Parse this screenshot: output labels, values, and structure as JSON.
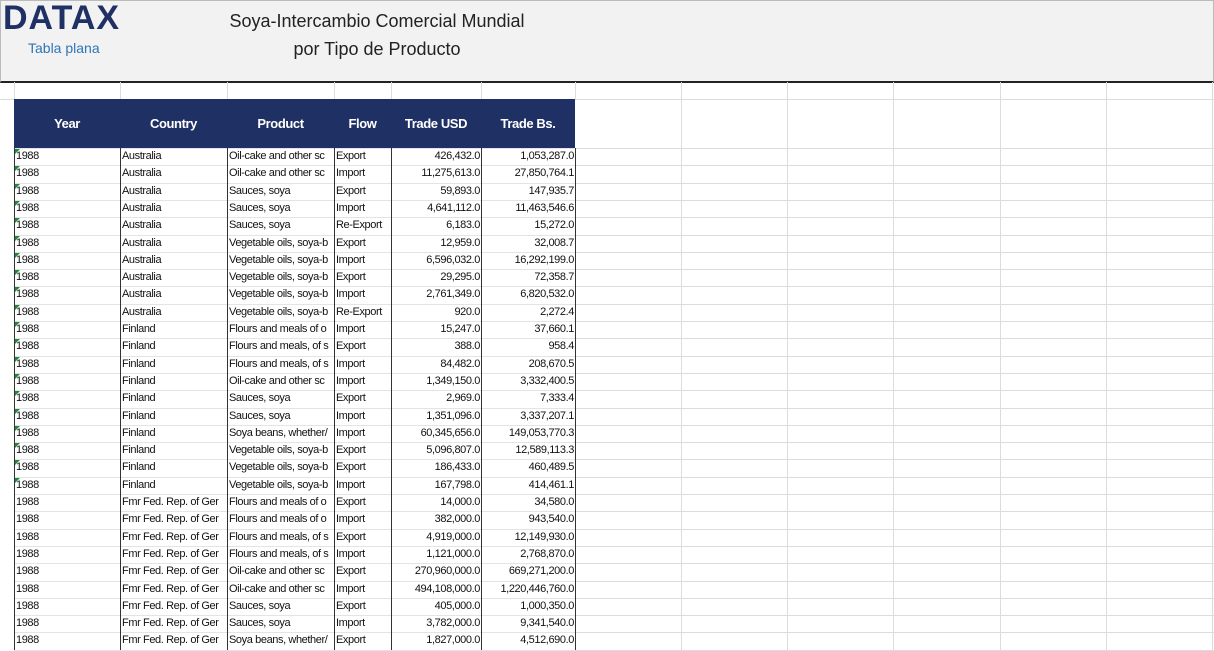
{
  "header": {
    "logo": "DATAX",
    "logo_subtitle": "Tabla plana",
    "title_lines": [
      "Soya-Intercambio Comercial Mundial",
      "por Tipo de Producto"
    ]
  },
  "table": {
    "columns": [
      "Year",
      "Country",
      "Product",
      "Flow",
      "Trade USD",
      "Trade Bs."
    ],
    "rows": [
      [
        "1988",
        "Australia",
        "Oil-cake and other sc",
        "Export",
        "426,432.0",
        "1,053,287.0"
      ],
      [
        "1988",
        "Australia",
        "Oil-cake and other sc",
        "Import",
        "11,275,613.0",
        "27,850,764.1"
      ],
      [
        "1988",
        "Australia",
        "Sauces, soya",
        "Export",
        "59,893.0",
        "147,935.7"
      ],
      [
        "1988",
        "Australia",
        "Sauces, soya",
        "Import",
        "4,641,112.0",
        "11,463,546.6"
      ],
      [
        "1988",
        "Australia",
        "Sauces, soya",
        "Re-Export",
        "6,183.0",
        "15,272.0"
      ],
      [
        "1988",
        "Australia",
        "Vegetable oils, soya-b",
        "Export",
        "12,959.0",
        "32,008.7"
      ],
      [
        "1988",
        "Australia",
        "Vegetable oils, soya-b",
        "Import",
        "6,596,032.0",
        "16,292,199.0"
      ],
      [
        "1988",
        "Australia",
        "Vegetable oils, soya-b",
        "Export",
        "29,295.0",
        "72,358.7"
      ],
      [
        "1988",
        "Australia",
        "Vegetable oils, soya-b",
        "Import",
        "2,761,349.0",
        "6,820,532.0"
      ],
      [
        "1988",
        "Australia",
        "Vegetable oils, soya-b",
        "Re-Export",
        "920.0",
        "2,272.4"
      ],
      [
        "1988",
        "Finland",
        "Flours and meals of o",
        "Import",
        "15,247.0",
        "37,660.1"
      ],
      [
        "1988",
        "Finland",
        "Flours and meals, of s",
        "Export",
        "388.0",
        "958.4"
      ],
      [
        "1988",
        "Finland",
        "Flours and meals, of s",
        "Import",
        "84,482.0",
        "208,670.5"
      ],
      [
        "1988",
        "Finland",
        "Oil-cake and other sc",
        "Import",
        "1,349,150.0",
        "3,332,400.5"
      ],
      [
        "1988",
        "Finland",
        "Sauces, soya",
        "Export",
        "2,969.0",
        "7,333.4"
      ],
      [
        "1988",
        "Finland",
        "Sauces, soya",
        "Import",
        "1,351,096.0",
        "3,337,207.1"
      ],
      [
        "1988",
        "Finland",
        "Soya beans, whether/",
        "Import",
        "60,345,656.0",
        "149,053,770.3"
      ],
      [
        "1988",
        "Finland",
        "Vegetable oils, soya-b",
        "Export",
        "5,096,807.0",
        "12,589,113.3"
      ],
      [
        "1988",
        "Finland",
        "Vegetable oils, soya-b",
        "Export",
        "186,433.0",
        "460,489.5"
      ],
      [
        "1988",
        "Finland",
        "Vegetable oils, soya-b",
        "Import",
        "167,798.0",
        "414,461.1"
      ],
      [
        "1988",
        "Fmr Fed. Rep. of Ger",
        "Flours and meals of o",
        "Export",
        "14,000.0",
        "34,580.0"
      ],
      [
        "1988",
        "Fmr Fed. Rep. of Ger",
        "Flours and meals of o",
        "Import",
        "382,000.0",
        "943,540.0"
      ],
      [
        "1988",
        "Fmr Fed. Rep. of Ger",
        "Flours and meals, of s",
        "Export",
        "4,919,000.0",
        "12,149,930.0"
      ],
      [
        "1988",
        "Fmr Fed. Rep. of Ger",
        "Flours and meals, of s",
        "Import",
        "1,121,000.0",
        "2,768,870.0"
      ],
      [
        "1988",
        "Fmr Fed. Rep. of Ger",
        "Oil-cake and other sc",
        "Export",
        "270,960,000.0",
        "669,271,200.0"
      ],
      [
        "1988",
        "Fmr Fed. Rep. of Ger",
        "Oil-cake and other sc",
        "Import",
        "494,108,000.0",
        "1,220,446,760.0"
      ],
      [
        "1988",
        "Fmr Fed. Rep. of Ger",
        "Sauces, soya",
        "Export",
        "405,000.0",
        "1,000,350.0"
      ],
      [
        "1988",
        "Fmr Fed. Rep. of Ger",
        "Sauces, soya",
        "Import",
        "3,782,000.0",
        "9,341,540.0"
      ],
      [
        "1988",
        "Fmr Fed. Rep. of Ger",
        "Soya beans, whether/",
        "Export",
        "1,827,000.0",
        "4,512,690.0"
      ]
    ]
  }
}
